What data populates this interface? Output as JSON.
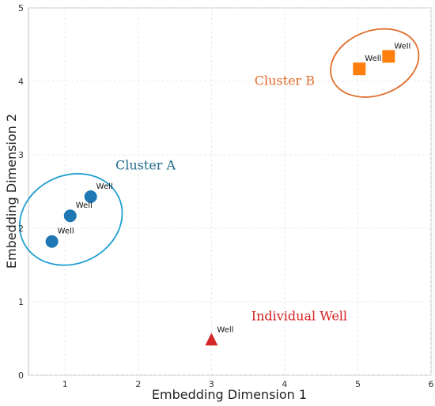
{
  "chart_data": {
    "type": "scatter",
    "title": "",
    "xlabel": "Embedding Dimension 1",
    "ylabel": "Embedding Dimension 2",
    "xlim": [
      0.5,
      6
    ],
    "ylim": [
      0,
      5
    ],
    "xticks": [
      "1",
      "2",
      "3",
      "4",
      "5",
      "6"
    ],
    "yticks": [
      "0",
      "1",
      "2",
      "3",
      "4",
      "5"
    ],
    "grid": true,
    "legend": "none",
    "series": [
      {
        "marker": "circle",
        "color": "#1f77b4",
        "points": [
          {
            "x": 0.82,
            "y": 1.82,
            "label": "Well"
          },
          {
            "x": 1.07,
            "y": 2.17,
            "label": "Well"
          },
          {
            "x": 1.35,
            "y": 2.43,
            "label": "Well"
          }
        ]
      },
      {
        "marker": "square",
        "color": "#ff7f0e",
        "points": [
          {
            "x": 5.02,
            "y": 4.17,
            "label": "Well"
          },
          {
            "x": 5.42,
            "y": 4.34,
            "label": "Well"
          }
        ]
      },
      {
        "marker": "triangle",
        "color": "#d62728",
        "points": [
          {
            "x": 3.0,
            "y": 0.48,
            "label": "Well"
          }
        ]
      }
    ],
    "annotations": [
      {
        "text": "Cluster A",
        "color": "#1f6a8a",
        "x": 2.1,
        "y": 2.8
      },
      {
        "text": "Cluster B",
        "color": "#e06c2a",
        "x": 4.0,
        "y": 3.95
      },
      {
        "text": "Individual Well",
        "color": "#d42020",
        "x": 4.2,
        "y": 0.75
      }
    ],
    "ellipses": [
      {
        "color": "#1f9fd0",
        "cx": 1.08,
        "cy": 2.12,
        "rx": 0.72,
        "ry": 0.6,
        "rotate": -25
      },
      {
        "color": "#e06c2a",
        "cx": 5.23,
        "cy": 4.25,
        "rx": 0.62,
        "ry": 0.44,
        "rotate": -20
      }
    ]
  }
}
